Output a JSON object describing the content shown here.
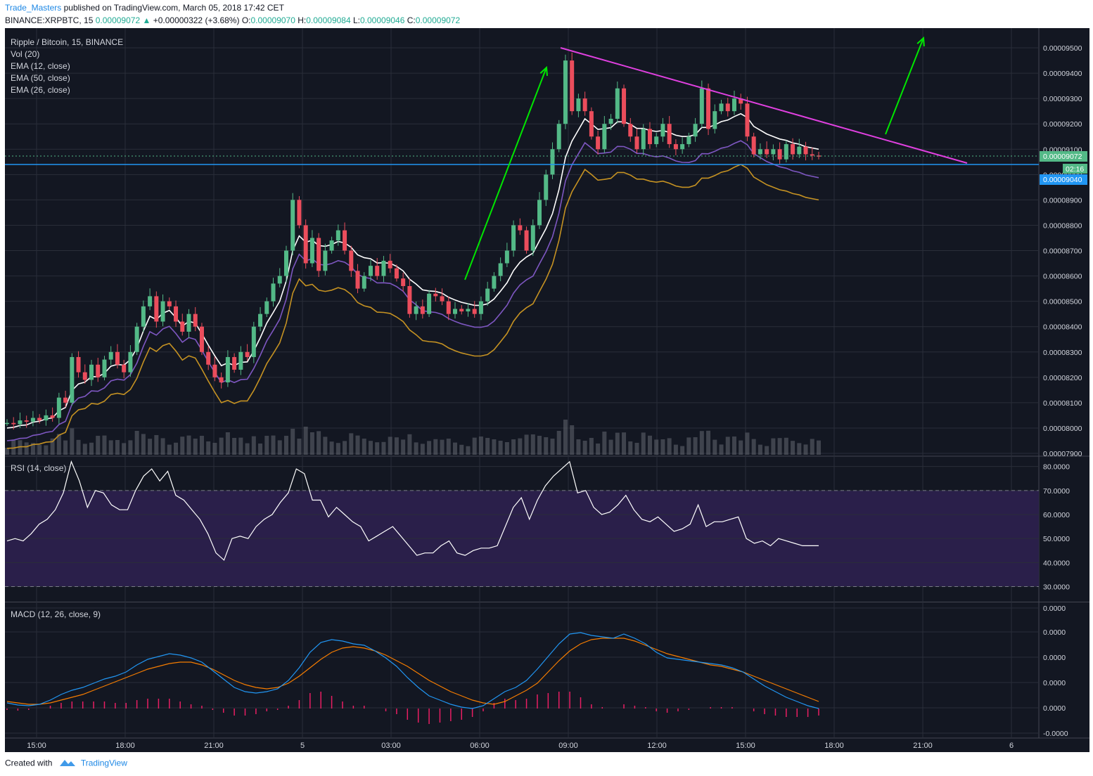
{
  "header": {
    "author": "Trade_Masters",
    "published": "published on TradingView.com, March 05, 2018 17:42 CET",
    "symbol": "BINANCE:XRPBTC, 15",
    "last": "0.00009072",
    "change": "+0.00000322 (+3.68%)",
    "o_label": "O:",
    "o": "0.00009070",
    "h_label": "H:",
    "h": "0.00009084",
    "l_label": "L:",
    "l": "0.00009046",
    "c_label": "C:",
    "c": "0.00009072"
  },
  "legend": {
    "title": "Ripple / Bitcoin, 15, BINANCE",
    "vol": "Vol (20)",
    "ema12": "EMA (12, close)",
    "ema50": "EMA (50, close)",
    "ema26": "EMA (26, close)",
    "rsi": "RSI (14, close)",
    "macd": "MACD (12, 26, close, 9)"
  },
  "footer": {
    "created": "Created with",
    "brand": "TradingView"
  },
  "colors": {
    "background": "#131722",
    "grid": "#2a2e39",
    "up": "#53b987",
    "down": "#eb4d5c",
    "ema12": "#ffffff",
    "ema26": "#7e57c2",
    "ema50": "#c59222",
    "trendline": "#e040e0",
    "arrow": "#00e600",
    "support": "#2196f3",
    "rsi_line": "#ffffff",
    "rsi_band": "#2a1f4a",
    "macd_line": "#2196f3",
    "signal_line": "#f57c00",
    "histogram": "#e91e63"
  },
  "chart_data": [
    {
      "type": "candlestick",
      "title": "Ripple / Bitcoin, 15, BINANCE",
      "x_ticks": [
        "15:00",
        "18:00",
        "21:00",
        "5",
        "03:00",
        "06:00",
        "09:00",
        "12:00",
        "15:00",
        "18:00",
        "21:00",
        "6"
      ],
      "y_ticks": [
        "0.00009500",
        "0.00009400",
        "0.00009300",
        "0.00009200",
        "0.00009100",
        "0.00009000",
        "0.00008900",
        "0.00008800",
        "0.00008700",
        "0.00008600",
        "0.00008500",
        "0.00008400",
        "0.00008300",
        "0.00008200",
        "0.00008100",
        "0.00008000",
        "0.00007900"
      ],
      "ylim": [
        7.9e-05,
        9.55e-05
      ],
      "last_price_label": "0.00009072",
      "countdown_label": "02:16",
      "support_label": "0.00009040",
      "support_level": 9.04e-05,
      "closes": [
        8.02,
        8.015,
        8.03,
        8.025,
        8.04,
        8.03,
        8.05,
        8.04,
        8.12,
        8.1,
        8.28,
        8.22,
        8.19,
        8.25,
        8.2,
        8.27,
        8.3,
        8.25,
        8.22,
        8.3,
        8.4,
        8.48,
        8.52,
        8.42,
        8.5,
        8.48,
        8.42,
        8.38,
        8.45,
        8.4,
        8.3,
        8.25,
        8.2,
        8.18,
        8.28,
        8.23,
        8.3,
        8.28,
        8.4,
        8.45,
        8.5,
        8.57,
        8.6,
        8.7,
        8.9,
        8.8,
        8.65,
        8.75,
        8.62,
        8.7,
        8.74,
        8.78,
        8.7,
        8.62,
        8.55,
        8.6,
        8.64,
        8.6,
        8.66,
        8.63,
        8.59,
        8.56,
        8.45,
        8.48,
        8.45,
        8.53,
        8.52,
        8.5,
        8.45,
        8.47,
        8.46,
        8.47,
        8.45,
        8.5,
        8.55,
        8.6,
        8.65,
        8.7,
        8.8,
        8.78,
        8.7,
        8.8,
        8.9,
        9.0,
        9.1,
        9.2,
        9.45,
        9.25,
        9.3,
        9.25,
        9.15,
        9.1,
        9.2,
        9.22,
        9.34,
        9.2,
        9.15,
        9.1,
        9.18,
        9.12,
        9.15,
        9.2,
        9.12,
        9.1,
        9.12,
        9.15,
        9.2,
        9.34,
        9.18,
        9.25,
        9.28,
        9.25,
        9.3,
        9.28,
        9.15,
        9.08,
        9.1,
        9.08,
        9.1,
        9.06,
        9.12,
        9.08,
        9.11,
        9.08,
        9.075,
        9.072
      ],
      "ema12": [
        8.0,
        8.003,
        8.01,
        8.012,
        8.023,
        8.027,
        8.036,
        8.04,
        8.068,
        8.081,
        8.148,
        8.174,
        8.181,
        8.203,
        8.202,
        8.216,
        8.244,
        8.251,
        8.248,
        8.27,
        8.316,
        8.383,
        8.441,
        8.428,
        8.453,
        8.464,
        8.436,
        8.402,
        8.421,
        8.414,
        8.372,
        8.327,
        8.285,
        8.246,
        8.257,
        8.247,
        8.259,
        8.261,
        8.304,
        8.356,
        8.414,
        8.456,
        8.5,
        8.58,
        8.7,
        8.758,
        8.733,
        8.741,
        8.72,
        8.717,
        8.724,
        8.736,
        8.73,
        8.713,
        8.683,
        8.672,
        8.668,
        8.651,
        8.652,
        8.65,
        8.638,
        8.62,
        8.587,
        8.568,
        8.545,
        8.541,
        8.539,
        8.532,
        8.516,
        8.505,
        8.496,
        8.49,
        8.484,
        8.484,
        8.49,
        8.509,
        8.54,
        8.573,
        8.621,
        8.654,
        8.675,
        8.69,
        8.739,
        8.787,
        8.846,
        8.94,
        9.068,
        9.132,
        9.176,
        9.22,
        9.2,
        9.178,
        9.181,
        9.185,
        9.208,
        9.208,
        9.198,
        9.182,
        9.182,
        9.174,
        9.17,
        9.174,
        9.166,
        9.155,
        9.15,
        9.15,
        9.158,
        9.186,
        9.186,
        9.196,
        9.209,
        9.215,
        9.229,
        9.24,
        9.225,
        9.19,
        9.175,
        9.16,
        9.15,
        9.14,
        9.135,
        9.125,
        9.12,
        9.11,
        9.105,
        9.1
      ]
    },
    {
      "type": "line",
      "title": "RSI (14, close)",
      "y_ticks": [
        "80.0000",
        "70.0000",
        "60.0000",
        "50.0000",
        "40.0000",
        "30.0000"
      ],
      "ylim": [
        24,
        84
      ],
      "bands": [
        30,
        70
      ],
      "values": [
        49,
        50,
        49,
        52,
        56,
        58,
        62,
        69,
        82,
        74,
        63,
        70,
        69,
        64,
        62,
        62,
        70,
        76,
        79,
        74,
        78,
        68,
        66,
        62,
        58,
        52,
        44,
        41,
        50,
        51,
        50,
        55,
        58,
        60,
        65,
        69,
        79,
        77,
        66,
        66,
        59,
        63,
        60,
        57,
        55,
        49,
        51,
        53,
        55,
        51,
        47,
        43,
        44,
        44,
        47,
        49,
        44,
        43,
        45,
        46,
        46,
        47,
        55,
        63,
        67,
        58,
        66,
        72,
        76,
        79,
        82,
        69,
        70,
        63,
        60,
        61,
        64,
        68,
        62,
        58,
        57,
        59,
        56,
        53,
        54,
        56,
        64,
        55,
        57,
        57,
        58,
        59,
        50,
        48,
        49,
        47,
        50,
        49,
        48,
        47,
        47,
        47
      ]
    },
    {
      "type": "line",
      "title": "MACD (12, 26, close, 9)",
      "y_ticks": [
        "0.0000",
        "0.0000",
        "0.0000",
        "0.0000",
        "0.0000",
        "-0.0000"
      ],
      "macd": [
        8,
        5,
        4,
        6,
        12,
        20,
        26,
        30,
        36,
        42,
        46,
        52,
        62,
        70,
        74,
        78,
        76,
        72,
        66,
        54,
        42,
        30,
        24,
        22,
        24,
        28,
        40,
        58,
        80,
        94,
        98,
        96,
        92,
        90,
        82,
        72,
        60,
        44,
        30,
        18,
        12,
        6,
        2,
        0,
        4,
        14,
        24,
        30,
        40,
        56,
        74,
        92,
        106,
        108,
        104,
        102,
        100,
        106,
        100,
        92,
        80,
        72,
        70,
        68,
        66,
        64,
        62,
        58,
        52,
        42,
        32,
        24,
        16,
        10,
        4,
        0
      ],
      "signal": [
        10,
        8,
        6,
        6,
        8,
        12,
        16,
        20,
        26,
        32,
        38,
        44,
        50,
        56,
        60,
        64,
        66,
        66,
        62,
        56,
        48,
        40,
        34,
        30,
        28,
        30,
        36,
        46,
        58,
        70,
        80,
        86,
        88,
        86,
        82,
        76,
        68,
        60,
        50,
        40,
        32,
        24,
        18,
        12,
        8,
        6,
        10,
        18,
        26,
        36,
        52,
        68,
        82,
        92,
        98,
        100,
        100,
        100,
        96,
        90,
        84,
        78,
        74,
        70,
        66,
        62,
        60,
        56,
        52,
        46,
        40,
        34,
        28,
        22,
        16,
        10
      ],
      "histogram": [
        -2,
        -3,
        -2,
        0,
        4,
        8,
        10,
        10,
        10,
        10,
        8,
        8,
        12,
        14,
        14,
        14,
        10,
        6,
        4,
        -2,
        -6,
        -10,
        -10,
        -8,
        -4,
        -2,
        4,
        12,
        22,
        24,
        18,
        10,
        4,
        4,
        0,
        -4,
        -8,
        -16,
        -20,
        -22,
        -20,
        -18,
        -16,
        -12,
        -4,
        8,
        14,
        12,
        14,
        20,
        22,
        24,
        24,
        16,
        6,
        2,
        0,
        6,
        4,
        2,
        -4,
        -6,
        -4,
        -2,
        0,
        2,
        2,
        2,
        0,
        -4,
        -8,
        -10,
        -12,
        -12,
        -12,
        -10
      ],
      "x_ticks": [
        "15:00",
        "18:00",
        "21:00",
        "5",
        "03:00",
        "06:00",
        "09:00",
        "12:00",
        "15:00",
        "18:00",
        "21:00",
        "6"
      ]
    }
  ]
}
